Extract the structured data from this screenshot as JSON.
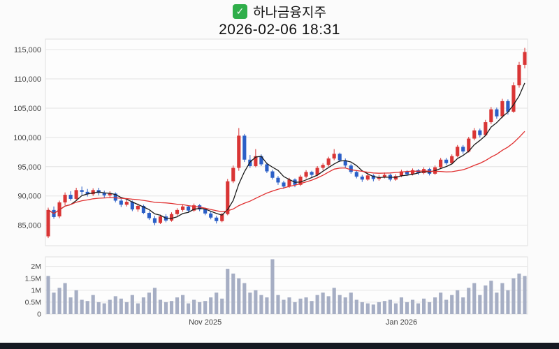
{
  "icons": {
    "check": "✓"
  },
  "colors": {
    "up": "#d93535",
    "down": "#2b5fc7",
    "ma_short": "#1a1a1a",
    "ma_long": "#e03030",
    "volume_bar": "#a6aec4",
    "grid": "#e4e4e4",
    "plot_border": "#e0e0e0",
    "plot_bg": "#fdfdfd",
    "axis_text": "#444444",
    "check_green": "#2fae4a",
    "bottom_bar": "#151922"
  },
  "chart_data": [
    {
      "type": "candlestick",
      "title": "하나금융지주",
      "subtitle": "2026-02-06 18:31",
      "ohlc_format": [
        "open",
        "high",
        "low",
        "close"
      ],
      "ylim": [
        81500,
        116800
      ],
      "grid": true,
      "y_ticks": [
        {
          "v": 115000,
          "label": "115,000"
        },
        {
          "v": 110000,
          "label": "110,000"
        },
        {
          "v": 105000,
          "label": "105,000"
        },
        {
          "v": 100000,
          "label": "100,000"
        },
        {
          "v": 95000,
          "label": "95,000"
        },
        {
          "v": 90000,
          "label": "90,000"
        },
        {
          "v": 85000,
          "label": "85,000"
        }
      ],
      "x_ticks": [
        {
          "pos": 28,
          "label": "Nov 2025"
        },
        {
          "pos": 63,
          "label": "Jan 2026"
        }
      ],
      "moving_averages": [
        {
          "window": 5,
          "color_key": "ma_short"
        },
        {
          "window": 20,
          "color_key": "ma_long"
        }
      ],
      "candles": [
        [
          83100,
          88000,
          82800,
          87600
        ],
        [
          87600,
          88200,
          86100,
          86400
        ],
        [
          86500,
          89200,
          86200,
          88900
        ],
        [
          88900,
          90600,
          88400,
          90200
        ],
        [
          90200,
          90800,
          89200,
          89500
        ],
        [
          89500,
          91400,
          89300,
          91000
        ],
        [
          91000,
          91600,
          90200,
          90700
        ],
        [
          90700,
          91200,
          89900,
          90300
        ],
        [
          90300,
          91300,
          90000,
          91000
        ],
        [
          91000,
          91400,
          90100,
          90500
        ],
        [
          90500,
          90900,
          89700,
          90100
        ],
        [
          90100,
          90800,
          89800,
          90400
        ],
        [
          90400,
          90600,
          88900,
          89200
        ],
        [
          89200,
          89500,
          88100,
          88500
        ],
        [
          88500,
          89400,
          88200,
          89000
        ],
        [
          89000,
          89200,
          87400,
          87700
        ],
        [
          87700,
          88700,
          87300,
          88300
        ],
        [
          88300,
          88500,
          86900,
          87100
        ],
        [
          87100,
          87400,
          85900,
          86200
        ],
        [
          86200,
          86600,
          85000,
          85400
        ],
        [
          85400,
          86800,
          85200,
          86500
        ],
        [
          86500,
          86900,
          85500,
          85800
        ],
        [
          85800,
          87200,
          85600,
          86900
        ],
        [
          86900,
          87900,
          86600,
          87600
        ],
        [
          87600,
          88500,
          87300,
          88200
        ],
        [
          88200,
          88400,
          87200,
          87500
        ],
        [
          87500,
          88700,
          87300,
          88400
        ],
        [
          88400,
          88600,
          87400,
          87700
        ],
        [
          87700,
          88000,
          86700,
          87000
        ],
        [
          87000,
          87300,
          86000,
          86300
        ],
        [
          86300,
          86600,
          85300,
          85700
        ],
        [
          85700,
          87100,
          85500,
          86900
        ],
        [
          86900,
          92900,
          86700,
          92500
        ],
        [
          92500,
          95200,
          92200,
          94800
        ],
        [
          94800,
          101600,
          94300,
          100300
        ],
        [
          100300,
          100600,
          95800,
          96200
        ],
        [
          96200,
          97000,
          94800,
          95100
        ],
        [
          95100,
          98000,
          94900,
          96800
        ],
        [
          96800,
          97100,
          95100,
          95400
        ],
        [
          95400,
          95700,
          93900,
          94200
        ],
        [
          94200,
          94500,
          92800,
          93100
        ],
        [
          93100,
          93400,
          91900,
          92300
        ],
        [
          92300,
          92600,
          91200,
          91600
        ],
        [
          91600,
          93100,
          91400,
          92800
        ],
        [
          92800,
          93000,
          91500,
          91900
        ],
        [
          91900,
          93600,
          91700,
          93300
        ],
        [
          93300,
          94400,
          93000,
          94100
        ],
        [
          94100,
          94300,
          93200,
          93600
        ],
        [
          93600,
          95100,
          93400,
          94800
        ],
        [
          94800,
          95600,
          94400,
          95300
        ],
        [
          95300,
          96700,
          95000,
          96400
        ],
        [
          96400,
          98000,
          96100,
          97200
        ],
        [
          97200,
          97400,
          95800,
          96100
        ],
        [
          96100,
          96400,
          94800,
          95200
        ],
        [
          95200,
          95500,
          93800,
          94100
        ],
        [
          94100,
          94400,
          93000,
          93300
        ],
        [
          93300,
          93600,
          92400,
          92800
        ],
        [
          92800,
          93800,
          92600,
          93500
        ],
        [
          93500,
          93700,
          92500,
          92900
        ],
        [
          92900,
          93600,
          92600,
          93200
        ],
        [
          93200,
          94000,
          93000,
          93600
        ],
        [
          93600,
          93800,
          92500,
          92800
        ],
        [
          92800,
          93700,
          92600,
          93400
        ],
        [
          93400,
          94500,
          93200,
          94200
        ],
        [
          94200,
          94400,
          93400,
          93700
        ],
        [
          93700,
          94700,
          93500,
          94400
        ],
        [
          94400,
          94600,
          93600,
          93900
        ],
        [
          93900,
          94900,
          93700,
          94600
        ],
        [
          94600,
          94800,
          93500,
          93800
        ],
        [
          93800,
          95200,
          93600,
          94900
        ],
        [
          94900,
          96500,
          94700,
          96200
        ],
        [
          96200,
          96500,
          95300,
          95600
        ],
        [
          95600,
          97100,
          95400,
          96800
        ],
        [
          96800,
          98700,
          96600,
          98400
        ],
        [
          98400,
          98700,
          97200,
          97600
        ],
        [
          97600,
          100100,
          97400,
          99800
        ],
        [
          99800,
          101600,
          99500,
          101200
        ],
        [
          101200,
          101500,
          100000,
          100400
        ],
        [
          100400,
          103000,
          100200,
          102600
        ],
        [
          102600,
          105200,
          102300,
          104800
        ],
        [
          104800,
          105100,
          103200,
          103600
        ],
        [
          103600,
          106600,
          103300,
          106200
        ],
        [
          106200,
          106500,
          103900,
          104400
        ],
        [
          104400,
          109400,
          104200,
          108900
        ],
        [
          108900,
          112900,
          108500,
          112400
        ],
        [
          112400,
          115300,
          111800,
          114600
        ]
      ]
    },
    {
      "type": "bar",
      "name": "volume",
      "ylim": [
        0,
        2400
      ],
      "y_ticks": [
        {
          "v": 2000,
          "label": "2M"
        },
        {
          "v": 1500,
          "label": "1.5M"
        },
        {
          "v": 1000,
          "label": "1M"
        },
        {
          "v": 500,
          "label": "0.5M"
        },
        {
          "v": 0,
          "label": "0"
        }
      ],
      "values": [
        1600,
        900,
        1100,
        1300,
        700,
        1000,
        600,
        550,
        800,
        500,
        450,
        600,
        750,
        650,
        500,
        800,
        450,
        700,
        900,
        1100,
        600,
        500,
        550,
        700,
        800,
        450,
        600,
        500,
        550,
        700,
        900,
        650,
        1900,
        1700,
        1500,
        1300,
        900,
        1000,
        800,
        700,
        2300,
        800,
        600,
        700,
        500,
        650,
        700,
        550,
        800,
        900,
        750,
        1100,
        800,
        700,
        900,
        600,
        500,
        450,
        400,
        500,
        550,
        600,
        450,
        700,
        500,
        600,
        450,
        650,
        500,
        700,
        900,
        600,
        800,
        1000,
        700,
        1100,
        1300,
        800,
        1200,
        1400,
        900,
        1300,
        1000,
        1500,
        1700,
        1600
      ]
    }
  ]
}
